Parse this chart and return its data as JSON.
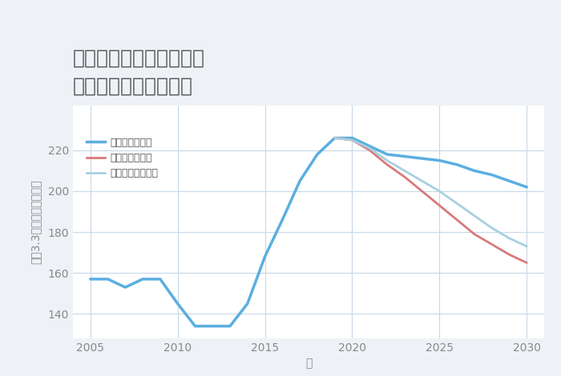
{
  "title_line1": "東京都江戸川区東瑞江の",
  "title_line2": "中古戸建ての価格推移",
  "xlabel": "年",
  "ylabel": "坪（3.3㎡）単価（万円）",
  "background_color": "#eef2f7",
  "plot_background_color": "#ffffff",
  "xlim": [
    2004,
    2031
  ],
  "ylim": [
    128,
    242
  ],
  "yticks": [
    140,
    160,
    180,
    200,
    220
  ],
  "xticks": [
    2005,
    2010,
    2015,
    2020,
    2025,
    2030
  ],
  "good_scenario": {
    "label": "グッドシナリオ",
    "color": "#5baee0",
    "linewidth": 2.5,
    "years": [
      2005,
      2006,
      2007,
      2008,
      2009,
      2010,
      2011,
      2012,
      2013,
      2014,
      2015,
      2016,
      2017,
      2018,
      2019,
      2020,
      2021,
      2022,
      2023,
      2024,
      2025,
      2026,
      2027,
      2028,
      2029,
      2030
    ],
    "values": [
      157,
      157,
      153,
      157,
      157,
      145,
      134,
      134,
      134,
      145,
      168,
      186,
      205,
      218,
      226,
      226,
      222,
      218,
      217,
      216,
      215,
      213,
      210,
      208,
      205,
      202
    ]
  },
  "bad_scenario": {
    "label": "バッドシナリオ",
    "color": "#d97a7a",
    "linewidth": 2.0,
    "years": [
      2019,
      2020,
      2021,
      2022,
      2023,
      2024,
      2025,
      2026,
      2027,
      2028,
      2029,
      2030
    ],
    "values": [
      226,
      225,
      220,
      213,
      207,
      200,
      193,
      186,
      179,
      174,
      169,
      165
    ]
  },
  "normal_scenario": {
    "label": "ノーマルシナリオ",
    "color": "#a8d0e0",
    "linewidth": 2.0,
    "years": [
      2019,
      2020,
      2021,
      2022,
      2023,
      2024,
      2025,
      2026,
      2027,
      2028,
      2029,
      2030
    ],
    "values": [
      226,
      225,
      221,
      215,
      210,
      205,
      200,
      194,
      188,
      182,
      177,
      173
    ]
  },
  "grid_color": "#c8d8e8",
  "title_color": "#555555",
  "tick_color": "#888888",
  "legend_color": "#555555",
  "title_fontsize": 18,
  "tick_fontsize": 10,
  "legend_fontsize": 9
}
